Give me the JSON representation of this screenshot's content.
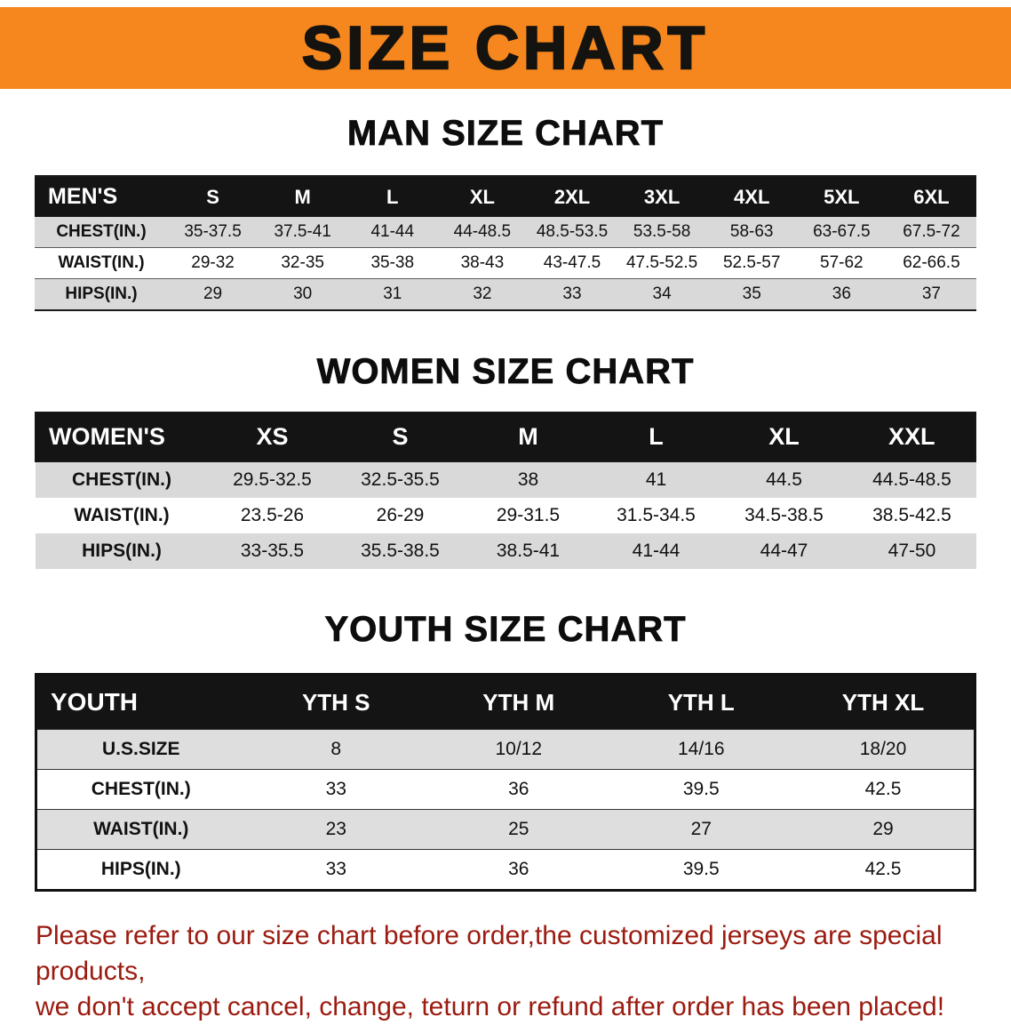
{
  "banner": {
    "title": "SIZE CHART"
  },
  "man": {
    "heading": "MAN SIZE CHART",
    "table": {
      "header": [
        "MEN'S",
        "S",
        "M",
        "L",
        "XL",
        "2XL",
        "3XL",
        "4XL",
        "5XL",
        "6XL"
      ],
      "rows": [
        [
          "CHEST(IN.)",
          "35-37.5",
          "37.5-41",
          "41-44",
          "44-48.5",
          "48.5-53.5",
          "53.5-58",
          "58-63",
          "63-67.5",
          "67.5-72"
        ],
        [
          "WAIST(IN.)",
          "29-32",
          "32-35",
          "35-38",
          "38-43",
          "43-47.5",
          "47.5-52.5",
          "52.5-57",
          "57-62",
          "62-66.5"
        ],
        [
          "HIPS(IN.)",
          "29",
          "30",
          "31",
          "32",
          "33",
          "34",
          "35",
          "36",
          "37"
        ]
      ]
    }
  },
  "women": {
    "heading": "WOMEN SIZE CHART",
    "table": {
      "header": [
        "WOMEN'S",
        "XS",
        "S",
        "M",
        "L",
        "XL",
        "XXL"
      ],
      "rows": [
        [
          "CHEST(IN.)",
          "29.5-32.5",
          "32.5-35.5",
          "38",
          "41",
          "44.5",
          "44.5-48.5"
        ],
        [
          "WAIST(IN.)",
          "23.5-26",
          "26-29",
          "29-31.5",
          "31.5-34.5",
          "34.5-38.5",
          "38.5-42.5"
        ],
        [
          "HIPS(IN.)",
          "33-35.5",
          "35.5-38.5",
          "38.5-41",
          "41-44",
          "44-47",
          "47-50"
        ]
      ]
    }
  },
  "youth": {
    "heading": "YOUTH SIZE CHART",
    "table": {
      "header": [
        "YOUTH",
        "YTH S",
        "YTH M",
        "YTH L",
        "YTH XL"
      ],
      "rows": [
        [
          "U.S.SIZE",
          "8",
          "10/12",
          "14/16",
          "18/20"
        ],
        [
          "CHEST(IN.)",
          "33",
          "36",
          "39.5",
          "42.5"
        ],
        [
          "WAIST(IN.)",
          "23",
          "25",
          "27",
          "29"
        ],
        [
          "HIPS(IN.)",
          "33",
          "36",
          "39.5",
          "42.5"
        ]
      ]
    }
  },
  "disclaimer": {
    "line1": "Please refer to our size chart before order,the customized jerseys are special products,",
    "line2": "we don't accept cancel, change, teturn or refund after order has been placed!"
  },
  "colors": {
    "banner_orange": "#F5871E",
    "table_header_black": "#141414",
    "row_gray": "#D9D9D9",
    "disclaimer_red": "#9B1B10"
  }
}
